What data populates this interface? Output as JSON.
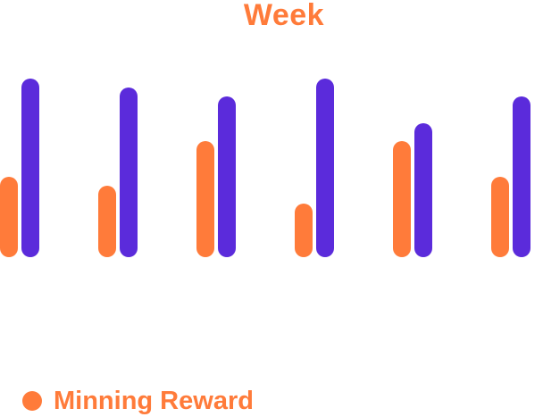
{
  "colors": {
    "accent": "#FF7B3A",
    "secondary": "#5B2BDB"
  },
  "chart_data": {
    "type": "bar",
    "title": "Week",
    "categories": [
      "",
      "",
      "",
      "",
      "",
      ""
    ],
    "series": [
      {
        "name": "Minning Reward",
        "values": [
          45,
          40,
          65,
          30,
          65,
          45
        ]
      },
      {
        "values": [
          100,
          95,
          90,
          100,
          75,
          90
        ]
      }
    ],
    "ylim": [
      0,
      100
    ],
    "grid": false,
    "legend": "bottom-left"
  },
  "legend": {
    "label": "Minning Reward"
  }
}
